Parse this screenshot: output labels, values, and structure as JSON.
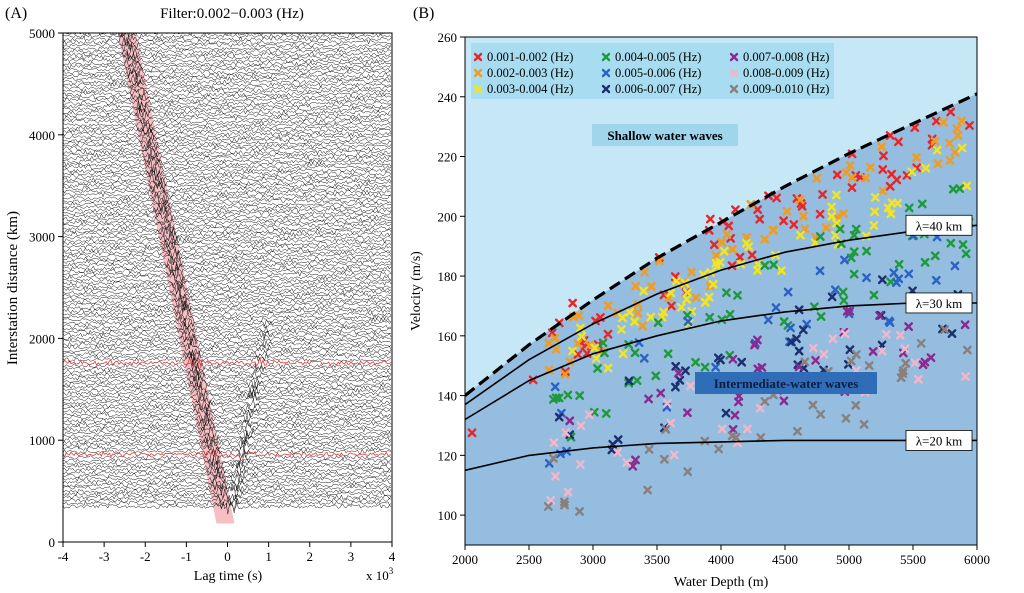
{
  "chart_data": [
    {
      "panel_label": "(A)",
      "type": "record-section",
      "title": "Filter:0.002−0.003 (Hz)",
      "xlabel": "Lag time (s)",
      "xlabel_multiplier": "x 10",
      "xlabel_multiplier_exp": "3",
      "ylabel": "Interstation distance (km)",
      "xlim": [
        -4,
        4
      ],
      "ylim": [
        0,
        5000
      ],
      "xticks": [
        "-4",
        "-3",
        "-2",
        "-1",
        "0",
        "1",
        "2",
        "3",
        "4"
      ],
      "yticks": [
        "0",
        "1000",
        "2000",
        "3000",
        "4000",
        "5000"
      ],
      "highlight_band": {
        "distance": [
          300,
          5000
        ],
        "lag_center": [
          -0.05,
          -2.45
        ]
      },
      "highlighted_traces_km": [
        870,
        1770
      ],
      "trace_distance_range_km": [
        350,
        5000
      ]
    },
    {
      "panel_label": "(B)",
      "type": "scatter",
      "xlabel": "Water Depth (m)",
      "ylabel": "Velocity (m/s)",
      "xlim": [
        2000,
        6000
      ],
      "ylim": [
        90,
        260
      ],
      "xticks": [
        2000,
        2500,
        3000,
        3500,
        4000,
        4500,
        5000,
        5500,
        6000
      ],
      "yticks": [
        100,
        120,
        140,
        160,
        180,
        200,
        220,
        240,
        260
      ],
      "legend_position": "top-left",
      "series": [
        {
          "name": "0.001-0.002 (Hz)",
          "color": "#e8262a",
          "freq": 0.0015
        },
        {
          "name": "0.002-0.003 (Hz)",
          "color": "#f39c1b",
          "freq": 0.0025
        },
        {
          "name": "0.003-0.004 (Hz)",
          "color": "#f3e51f",
          "freq": 0.0035
        },
        {
          "name": "0.004-0.005 (Hz)",
          "color": "#1e9a3a",
          "freq": 0.0045
        },
        {
          "name": "0.005-0.006 (Hz)",
          "color": "#2a63c6",
          "freq": 0.0055
        },
        {
          "name": "0.006-0.007 (Hz)",
          "color": "#1c2f6e",
          "freq": 0.0065
        },
        {
          "name": "0.007-0.008 (Hz)",
          "color": "#8a2a8e",
          "freq": 0.0075
        },
        {
          "name": "0.008-0.009 (Hz)",
          "color": "#f4b6c8",
          "freq": 0.0085
        },
        {
          "name": "0.009-0.010 (Hz)",
          "color": "#8a7f7a",
          "freq": 0.0095
        }
      ],
      "curves": [
        {
          "label": "shallow-limit",
          "style": "dashed",
          "points": [
            [
              2000,
              140
            ],
            [
              2500,
              157
            ],
            [
              3000,
              172
            ],
            [
              3500,
              186
            ],
            [
              4000,
              198
            ],
            [
              4500,
              210
            ],
            [
              5000,
              221
            ],
            [
              5500,
              231
            ],
            [
              6000,
              241
            ]
          ]
        },
        {
          "label": "λ=40 km",
          "style": "solid",
          "points": [
            [
              2000,
              137
            ],
            [
              2500,
              152
            ],
            [
              3000,
              164
            ],
            [
              3500,
              174
            ],
            [
              4000,
              182
            ],
            [
              4500,
              188
            ],
            [
              5000,
              192
            ],
            [
              5500,
              195
            ],
            [
              6000,
              197
            ]
          ]
        },
        {
          "label": "λ=30 km",
          "style": "solid",
          "points": [
            [
              2000,
              132
            ],
            [
              2500,
              145
            ],
            [
              3000,
              154
            ],
            [
              3500,
              160
            ],
            [
              4000,
              165
            ],
            [
              4500,
              168
            ],
            [
              5000,
              170
            ],
            [
              5500,
              171
            ],
            [
              6000,
              171
            ]
          ]
        },
        {
          "label": "λ=20 km",
          "style": "solid",
          "points": [
            [
              2000,
              115
            ],
            [
              2500,
              120
            ],
            [
              3000,
              122.5
            ],
            [
              3500,
              124
            ],
            [
              4000,
              124.5
            ],
            [
              4500,
              125
            ],
            [
              5000,
              125
            ],
            [
              5500,
              125
            ],
            [
              6000,
              125
            ]
          ]
        }
      ],
      "annotations": {
        "shallow": "Shallow water waves",
        "intermediate": "Intermediate-water waves"
      },
      "colors": {
        "shallow_bg": "#c6e7f5",
        "intermediate_bg": "#94bde0",
        "shallow_label_bg": "#9fd6ec",
        "intermediate_label_bg": "#2f6db8"
      }
    }
  ]
}
